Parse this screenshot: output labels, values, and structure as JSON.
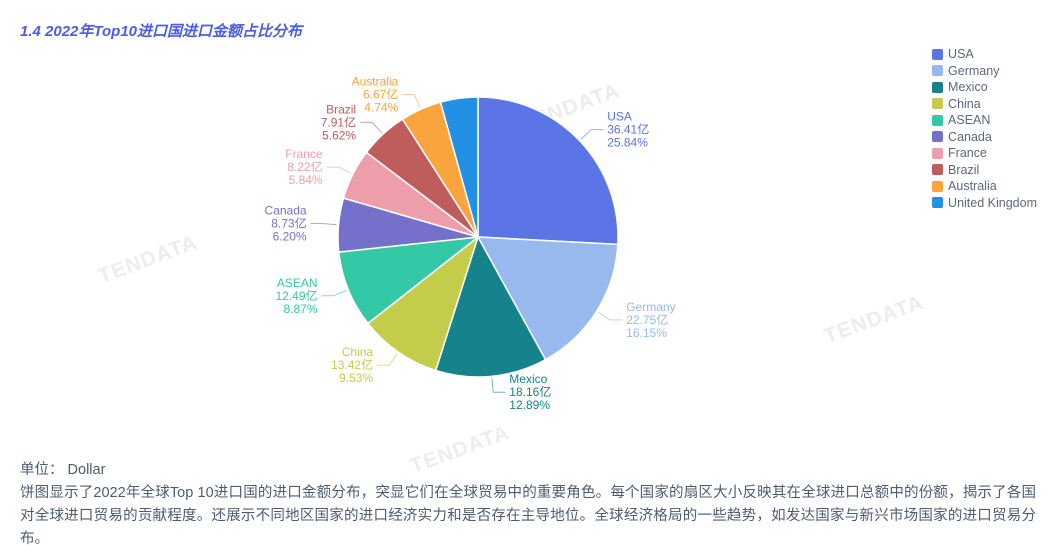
{
  "header": {
    "title": "1.4 2022年Top10进口国进口金额占比分布"
  },
  "watermark": {
    "text": "TENDATA"
  },
  "chart_data": {
    "type": "pie",
    "title": "1.4 2022年Top10进口国进口金额占比分布",
    "unit": "亿",
    "legend_position": "right",
    "series": [
      {
        "name": "USA",
        "value": 36.41,
        "value_label": "36.41亿",
        "percent": 25.84,
        "percent_label": "25.84%",
        "color": "#5b74e6"
      },
      {
        "name": "Germany",
        "value": 22.75,
        "value_label": "22.75亿",
        "percent": 16.15,
        "percent_label": "16.15%",
        "color": "#97b9ee"
      },
      {
        "name": "Mexico",
        "value": 18.16,
        "value_label": "18.16亿",
        "percent": 12.89,
        "percent_label": "12.89%",
        "color": "#15838c"
      },
      {
        "name": "China",
        "value": 13.42,
        "value_label": "13.42亿",
        "percent": 9.53,
        "percent_label": "9.53%",
        "color": "#c3cc4b"
      },
      {
        "name": "ASEAN",
        "value": 12.49,
        "value_label": "12.49亿",
        "percent": 8.87,
        "percent_label": "8.87%",
        "color": "#33c8a6"
      },
      {
        "name": "Canada",
        "value": 8.73,
        "value_label": "8.73亿",
        "percent": 6.2,
        "percent_label": "6.20%",
        "color": "#7571cb"
      },
      {
        "name": "France",
        "value": 8.22,
        "value_label": "8.22亿",
        "percent": 5.84,
        "percent_label": "5.84%",
        "color": "#ee9eab"
      },
      {
        "name": "Brazil",
        "value": 7.91,
        "value_label": "7.91亿",
        "percent": 5.62,
        "percent_label": "5.62%",
        "color": "#bf5c5c"
      },
      {
        "name": "Australia",
        "value": 6.67,
        "value_label": "6.67亿",
        "percent": 4.74,
        "percent_label": "4.74%",
        "color": "#f9a43d"
      },
      {
        "name": "United Kingdom",
        "color": "#2290e5"
      }
    ]
  },
  "footer": {
    "unit": "单位： Dollar",
    "description": "饼图显示了2022年全球Top 10进口国的进口金额分布，突显它们在全球贸易中的重要角色。每个国家的扇区大小反映其在全球进口总额中的份额，揭示了各国对全球进口贸易的贡献程度。还展示不同地区国家的进口经济实力和是否存在主导地位。全球经济格局的一些趋势，如发达国家与新兴市场国家的进口贸易分布。"
  }
}
